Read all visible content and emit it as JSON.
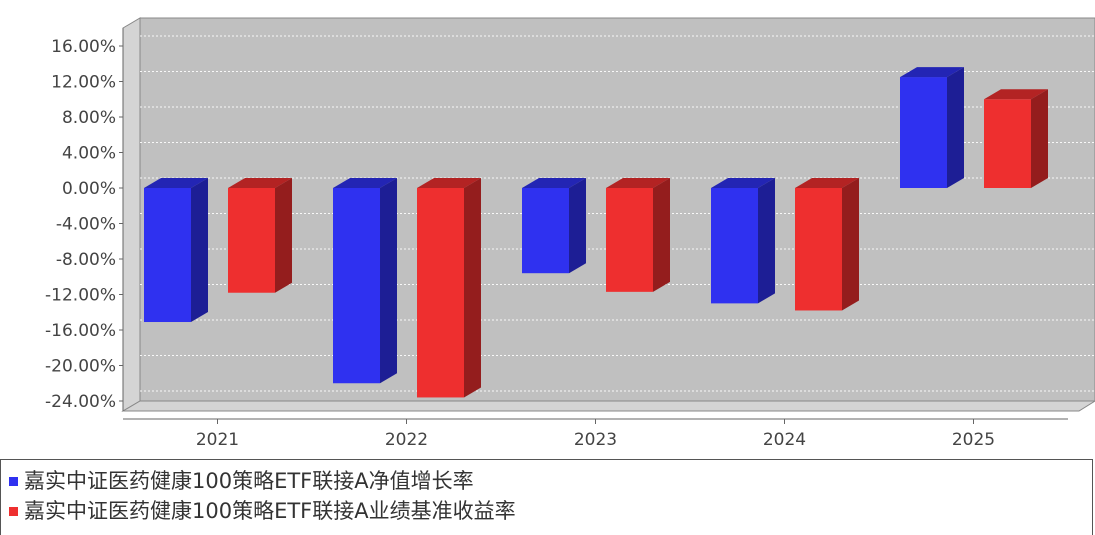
{
  "chart_data": {
    "type": "bar",
    "categories": [
      "2021",
      "2022",
      "2023",
      "2024",
      "2025"
    ],
    "series": [
      {
        "name": "嘉实中证医药健康100策略ETF联接A净值增长率",
        "color": "#2f31f0",
        "values": [
          -15.1,
          -22.0,
          -9.6,
          -13.0,
          12.5
        ]
      },
      {
        "name": "嘉实中证医药健康100策略ETF联接A业绩基准收益率",
        "color": "#ee2f2f",
        "values": [
          -11.8,
          -23.6,
          -11.7,
          -13.8,
          10.0
        ]
      }
    ],
    "y_ticks": [
      "16.00%",
      "12.00%",
      "8.00%",
      "4.00%",
      "0.00%",
      "-4.00%",
      "-8.00%",
      "-12.00%",
      "-16.00%",
      "-20.00%",
      "-24.00%"
    ],
    "ylim": [
      -24,
      16
    ],
    "grid": true,
    "legend_position": "bottom",
    "style": "3d-bar",
    "plot_background": "#c0c0c0"
  }
}
